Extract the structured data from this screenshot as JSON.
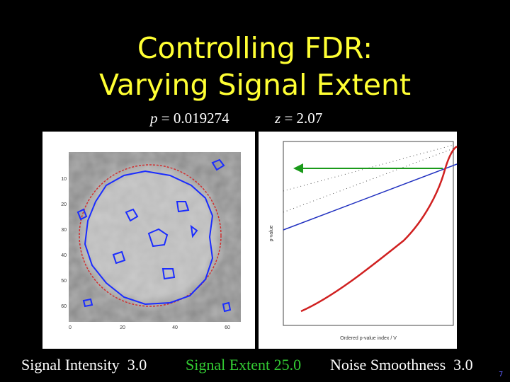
{
  "slide": {
    "title": [
      "Controlling FDR:",
      "Varying Signal Extent"
    ],
    "stats": {
      "p_symbol": "p",
      "p_value": "= 0.019274",
      "z_symbol": "z",
      "z_value": "= 2.07"
    },
    "left_image": {
      "y_ticks": [
        "10",
        "20",
        "30",
        "40",
        "50",
        "60"
      ],
      "x_ticks": [
        "0",
        "20",
        "40",
        "60"
      ]
    },
    "right_plot": {
      "y_axis_label": "p-value",
      "x_axis_label": "Ordered p-value index / V"
    },
    "footer": {
      "intensity": "Signal Intensity  3.0",
      "extent": "Signal Extent 25.0",
      "smoothness": "Noise Smoothness  3.0"
    },
    "page_number": "7"
  }
}
